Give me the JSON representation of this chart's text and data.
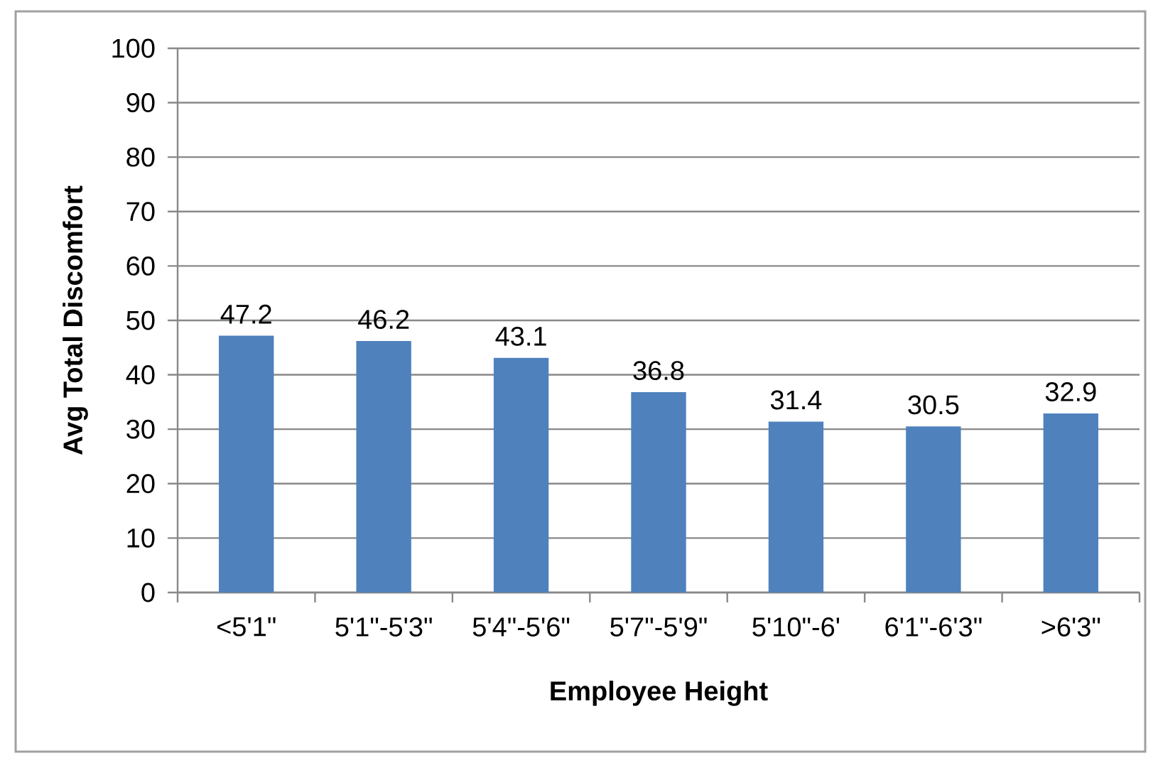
{
  "chart_data": {
    "type": "bar",
    "categories": [
      "<5'1\"",
      "5'1\"-5'3\"",
      "5'4\"-5'6\"",
      "5'7\"-5'9\"",
      "5'10\"-6'",
      "6'1\"-6'3\"",
      ">6'3\""
    ],
    "values": [
      47.2,
      46.2,
      43.1,
      36.8,
      31.4,
      30.5,
      32.9
    ],
    "color": "#4f81bd",
    "xlabel": "Employee Height",
    "ylabel": "Avg Total Discomfort",
    "ylim": [
      0,
      100
    ],
    "yticks": [
      0,
      10,
      20,
      30,
      40,
      50,
      60,
      70,
      80,
      90,
      100
    ],
    "grid": "y",
    "data_labels": true
  }
}
